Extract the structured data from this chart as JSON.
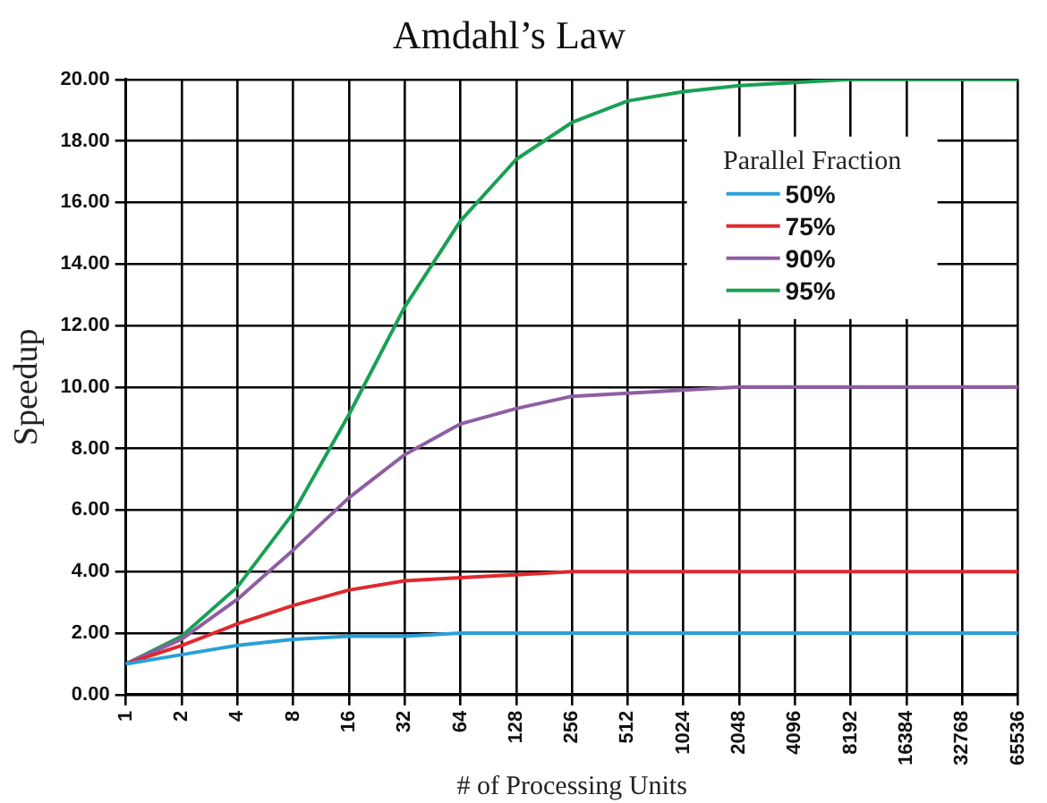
{
  "chart_data": {
    "type": "line",
    "title": "Amdahl’s Law",
    "xlabel": "# of Processing Units",
    "ylabel": "Speedup",
    "legend_title": "Parallel Fraction",
    "categories": [
      "1",
      "2",
      "4",
      "8",
      "16",
      "32",
      "64",
      "128",
      "256",
      "512",
      "1024",
      "2048",
      "4096",
      "8192",
      "16384",
      "32768",
      "65536"
    ],
    "series": [
      {
        "name": "50%",
        "color": "#2a9fd8",
        "values": [
          1,
          1.3,
          1.6,
          1.8,
          1.9,
          1.9,
          2,
          2,
          2,
          2,
          2,
          2,
          2,
          2,
          2,
          2,
          2
        ]
      },
      {
        "name": "75%",
        "color": "#e0282e",
        "values": [
          1,
          1.6,
          2.3,
          2.9,
          3.4,
          3.7,
          3.8,
          3.9,
          4,
          4,
          4,
          4,
          4,
          4,
          4,
          4,
          4
        ]
      },
      {
        "name": "90%",
        "color": "#8e5ea2",
        "values": [
          1,
          1.8,
          3.1,
          4.7,
          6.4,
          7.8,
          8.8,
          9.3,
          9.7,
          9.8,
          9.9,
          10,
          10,
          10,
          10,
          10,
          10
        ]
      },
      {
        "name": "95%",
        "color": "#1aa055",
        "values": [
          1,
          1.9,
          3.5,
          5.9,
          9.1,
          12.6,
          15.4,
          17.4,
          18.6,
          19.3,
          19.6,
          19.8,
          19.9,
          20,
          20,
          20,
          20
        ]
      }
    ],
    "ylim": [
      0,
      20
    ],
    "yticks": [
      {
        "value": 0,
        "label": "0.00"
      },
      {
        "value": 2,
        "label": "2.00"
      },
      {
        "value": 4,
        "label": "4.00"
      },
      {
        "value": 6,
        "label": "6.00"
      },
      {
        "value": 8,
        "label": "8.00"
      },
      {
        "value": 10,
        "label": "10.00"
      },
      {
        "value": 12,
        "label": "12.00"
      },
      {
        "value": 14,
        "label": "14.00"
      },
      {
        "value": 16,
        "label": "16.00"
      },
      {
        "value": 18,
        "label": "18.00"
      },
      {
        "value": 20,
        "label": "20.00"
      }
    ],
    "grid": true,
    "legend": "top right",
    "marker": "none",
    "line_style": "solid"
  }
}
